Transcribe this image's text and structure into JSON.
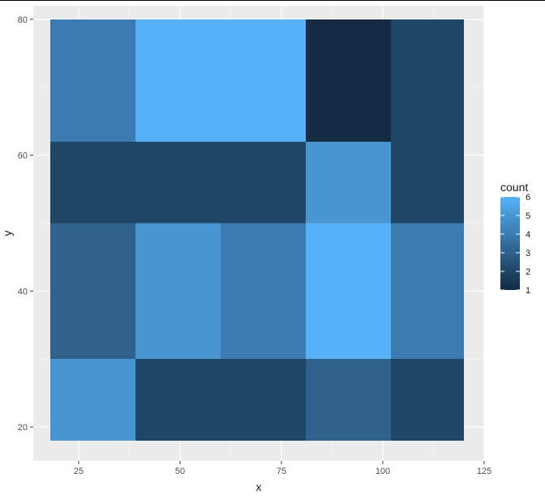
{
  "chart_data": {
    "type": "heatmap",
    "xlabel": "x",
    "ylabel": "y",
    "xlim": [
      13.8,
      125
    ],
    "ylim": [
      15,
      82
    ],
    "x_ticks": [
      25,
      50,
      75,
      100,
      125
    ],
    "y_ticks": [
      20,
      40,
      60,
      80
    ],
    "legend": {
      "title": "count",
      "placement": "right",
      "range": [
        1,
        6
      ],
      "ticks": [
        1,
        2,
        3,
        4,
        5,
        6
      ],
      "color_low": "#132B43",
      "color_high": "#56B1F7"
    },
    "tiles": [
      {
        "x0": 18,
        "x1": 39,
        "y0": 62,
        "y1": 80,
        "count": 4
      },
      {
        "x0": 39,
        "x1": 81,
        "y0": 62,
        "y1": 80,
        "count": 6
      },
      {
        "x0": 81,
        "x1": 102,
        "y0": 62,
        "y1": 80,
        "count": 1
      },
      {
        "x0": 102,
        "x1": 120,
        "y0": 62,
        "y1": 80,
        "count": 2
      },
      {
        "x0": 18,
        "x1": 81,
        "y0": 50,
        "y1": 62,
        "count": 2
      },
      {
        "x0": 81,
        "x1": 102,
        "y0": 50,
        "y1": 62,
        "count": 5
      },
      {
        "x0": 102,
        "x1": 120,
        "y0": 50,
        "y1": 62,
        "count": 2
      },
      {
        "x0": 18,
        "x1": 39,
        "y0": 30,
        "y1": 50,
        "count": 3
      },
      {
        "x0": 39,
        "x1": 60,
        "y0": 30,
        "y1": 50,
        "count": 5
      },
      {
        "x0": 60,
        "x1": 81,
        "y0": 30,
        "y1": 50,
        "count": 4
      },
      {
        "x0": 81,
        "x1": 102,
        "y0": 30,
        "y1": 50,
        "count": 6
      },
      {
        "x0": 102,
        "x1": 120,
        "y0": 30,
        "y1": 50,
        "count": 4
      },
      {
        "x0": 18,
        "x1": 39,
        "y0": 18,
        "y1": 30,
        "count": 5
      },
      {
        "x0": 39,
        "x1": 81,
        "y0": 18,
        "y1": 30,
        "count": 2
      },
      {
        "x0": 81,
        "x1": 102,
        "y0": 18,
        "y1": 30,
        "count": 3
      },
      {
        "x0": 102,
        "x1": 120,
        "y0": 18,
        "y1": 30,
        "count": 2
      }
    ]
  }
}
